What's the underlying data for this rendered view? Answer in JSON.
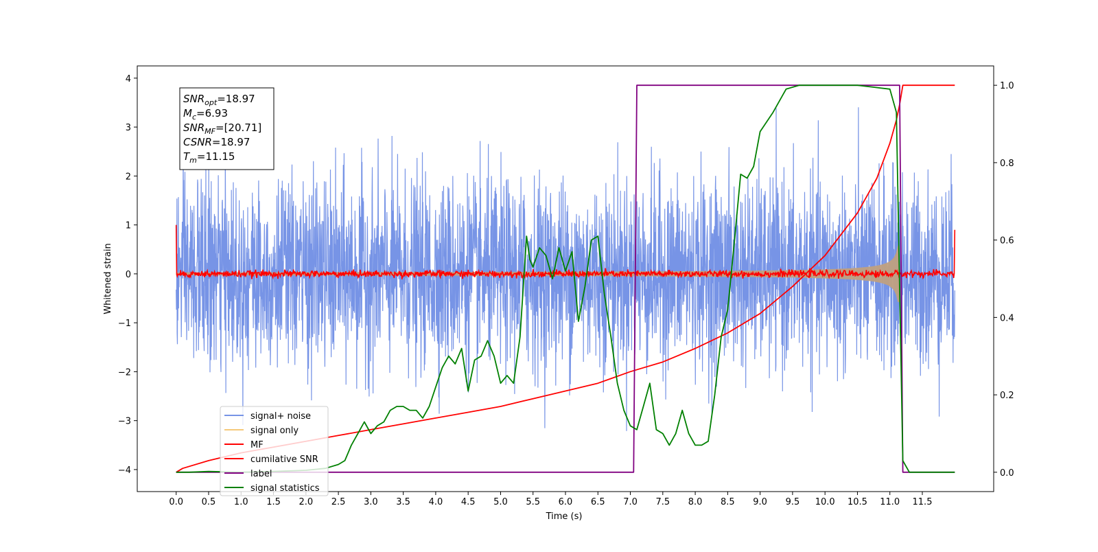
{
  "chart_data": {
    "type": "line",
    "xlabel": "Time (s)",
    "ylabel_left": "Whitened strain",
    "xlim": [
      -0.6,
      12.6
    ],
    "ylim_left": [
      -4.45,
      4.25
    ],
    "ylim_right": [
      -0.05,
      1.05
    ],
    "x_ticks": [
      0.0,
      0.5,
      1.0,
      1.5,
      2.0,
      2.5,
      3.0,
      3.5,
      4.0,
      4.5,
      5.0,
      5.5,
      6.0,
      6.5,
      7.0,
      7.5,
      8.0,
      8.5,
      9.0,
      9.5,
      10.0,
      10.5,
      11.0,
      11.5
    ],
    "x_tick_labels": [
      "0.0",
      "0.5",
      "1.0",
      "1.5",
      "2.0",
      "2.5",
      "3.0",
      "3.5",
      "4.0",
      "4.5",
      "5.0",
      "5.5",
      "6.0",
      "6.5",
      "7.0",
      "7.5",
      "8.0",
      "8.5",
      "9.0",
      "9.5",
      "10.0",
      "10.5",
      "11.0",
      "11.5"
    ],
    "y_left_ticks": [
      -4,
      -3,
      -2,
      -1,
      0,
      1,
      2,
      3,
      4
    ],
    "y_left_tick_labels": [
      "−4",
      "−3",
      "−2",
      "−1",
      "0",
      "1",
      "2",
      "3",
      "4"
    ],
    "y_right_ticks": [
      0.0,
      0.2,
      0.4,
      0.6,
      0.8,
      1.0
    ],
    "y_right_tick_labels": [
      "0.0",
      "0.2",
      "0.4",
      "0.6",
      "0.8",
      "1.0"
    ],
    "grid": false,
    "legend_placement": "lower-left",
    "annotations": [
      {
        "main": "SNR",
        "sub": "opt",
        "value": "=18.97"
      },
      {
        "main": "M",
        "sub": "c",
        "value": "=6.93"
      },
      {
        "main": "SNR",
        "sub": "MF",
        "value": "=[20.71]"
      },
      {
        "main": "CSNR",
        "sub": "",
        "value": "=18.97"
      },
      {
        "main": "T",
        "sub": "m",
        "value": "=11.15"
      }
    ],
    "series": [
      {
        "name": "signal+ noise",
        "axis": "left",
        "color": "#7794e6",
        "description_type": "noise",
        "x_range": [
          0.0,
          12.0
        ],
        "noise_std": 1.0
      },
      {
        "name": "signal only",
        "axis": "left",
        "color": "#c0a080",
        "description_type": "chirp",
        "x_range": [
          0.0,
          11.15
        ],
        "peak_amplitude": 1.1
      },
      {
        "name": "MF",
        "axis": "left",
        "color": "#ff0000",
        "description_type": "flat_noise",
        "x_range": [
          0.0,
          12.0
        ],
        "start_value": 1.0,
        "end_value": 0.9
      },
      {
        "name": "cumilative SNR",
        "axis": "right",
        "color": "#ff0000",
        "x": [
          0.0,
          0.1,
          0.5,
          1.0,
          1.5,
          2.0,
          2.5,
          3.0,
          3.5,
          4.0,
          4.5,
          5.0,
          5.5,
          6.0,
          6.5,
          7.0,
          7.5,
          8.0,
          8.5,
          9.0,
          9.5,
          10.0,
          10.5,
          10.8,
          11.0,
          11.1,
          11.15,
          11.2,
          12.0
        ],
        "y": [
          0.0,
          0.01,
          0.03,
          0.05,
          0.065,
          0.08,
          0.095,
          0.11,
          0.125,
          0.14,
          0.155,
          0.17,
          0.19,
          0.21,
          0.23,
          0.26,
          0.285,
          0.32,
          0.36,
          0.41,
          0.48,
          0.56,
          0.67,
          0.76,
          0.85,
          0.91,
          0.95,
          1.0,
          1.0
        ]
      },
      {
        "name": "label",
        "axis": "right",
        "color": "#800080",
        "x": [
          0.0,
          7.05,
          7.1,
          11.15,
          11.2,
          12.0
        ],
        "y": [
          0.0,
          0.0,
          1.0,
          1.0,
          0.0,
          0.0
        ]
      },
      {
        "name": "signal statistics",
        "axis": "right",
        "color": "#008000",
        "x": [
          0.0,
          0.2,
          0.5,
          1.0,
          1.5,
          2.0,
          2.3,
          2.5,
          2.6,
          2.7,
          2.8,
          2.9,
          3.0,
          3.1,
          3.2,
          3.3,
          3.4,
          3.5,
          3.6,
          3.7,
          3.8,
          3.9,
          4.0,
          4.1,
          4.2,
          4.3,
          4.4,
          4.5,
          4.6,
          4.7,
          4.8,
          4.9,
          5.0,
          5.1,
          5.2,
          5.3,
          5.4,
          5.45,
          5.5,
          5.6,
          5.7,
          5.8,
          5.9,
          6.0,
          6.1,
          6.2,
          6.3,
          6.4,
          6.5,
          6.6,
          6.7,
          6.8,
          6.9,
          7.0,
          7.1,
          7.2,
          7.3,
          7.4,
          7.5,
          7.6,
          7.7,
          7.8,
          7.9,
          8.0,
          8.1,
          8.2,
          8.3,
          8.4,
          8.5,
          8.6,
          8.7,
          8.8,
          8.9,
          9.0,
          9.2,
          9.4,
          9.6,
          10.0,
          10.5,
          11.0,
          11.1,
          11.2,
          11.3,
          12.0
        ],
        "y": [
          0.0,
          0.0,
          0.002,
          0.0,
          0.002,
          0.005,
          0.01,
          0.02,
          0.03,
          0.07,
          0.1,
          0.13,
          0.1,
          0.12,
          0.13,
          0.16,
          0.17,
          0.17,
          0.16,
          0.16,
          0.14,
          0.17,
          0.22,
          0.27,
          0.3,
          0.28,
          0.32,
          0.21,
          0.29,
          0.3,
          0.34,
          0.3,
          0.23,
          0.25,
          0.23,
          0.35,
          0.61,
          0.55,
          0.53,
          0.58,
          0.56,
          0.5,
          0.58,
          0.52,
          0.57,
          0.39,
          0.48,
          0.6,
          0.61,
          0.46,
          0.35,
          0.23,
          0.16,
          0.12,
          0.11,
          0.17,
          0.23,
          0.11,
          0.1,
          0.07,
          0.1,
          0.16,
          0.1,
          0.07,
          0.07,
          0.08,
          0.2,
          0.35,
          0.42,
          0.59,
          0.77,
          0.76,
          0.79,
          0.88,
          0.93,
          0.99,
          1.0,
          1.0,
          1.0,
          0.99,
          0.93,
          0.03,
          0.0,
          0.0
        ]
      }
    ]
  }
}
